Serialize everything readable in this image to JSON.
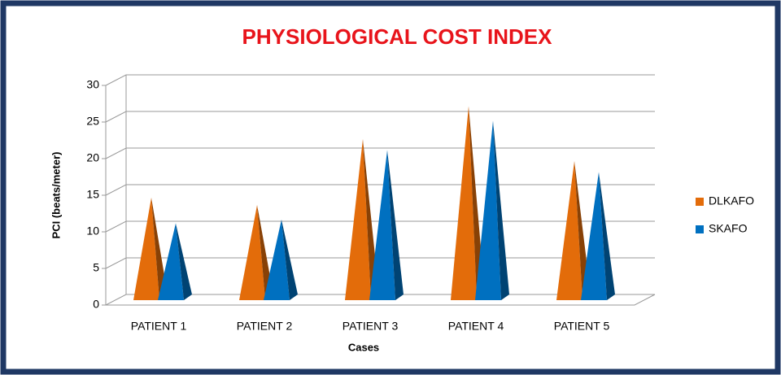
{
  "chart_data": {
    "type": "bar",
    "title": "PHYSIOLOGICAL COST INDEX",
    "x_label": "Cases",
    "y_label": "PCI (beats/meter)",
    "categories": [
      "PATIENT 1",
      "PATIENT 2",
      "PATIENT 3",
      "PATIENT 4",
      "PATIENT 5"
    ],
    "series": [
      {
        "name": "DLKAFO",
        "color": "#e36c0a",
        "values": [
          14,
          13,
          22,
          26.5,
          19
        ]
      },
      {
        "name": "SKAFO",
        "color": "#0070c0",
        "values": [
          10.5,
          11,
          20.5,
          24.5,
          17.5
        ]
      }
    ],
    "ylim": [
      0,
      30
    ],
    "yticks": [
      0,
      5,
      10,
      15,
      20,
      25,
      30
    ],
    "grid": true,
    "legend": "right"
  }
}
